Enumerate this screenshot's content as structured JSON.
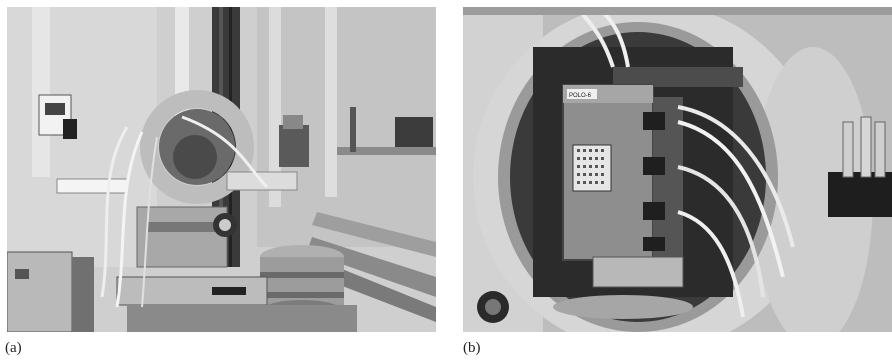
{
  "figure": {
    "panels": [
      {
        "label": "(a)",
        "photo_icon": "photo-experimental-station-icon"
      },
      {
        "label": "(b)",
        "photo_icon": "photo-sample-mount-ring-icon"
      }
    ],
    "device_tag": "POLO-6",
    "colors": {
      "photo_dark": "#2a2a2a",
      "photo_mid": "#8c8c8c",
      "photo_light": "#d9d9d9"
    }
  }
}
